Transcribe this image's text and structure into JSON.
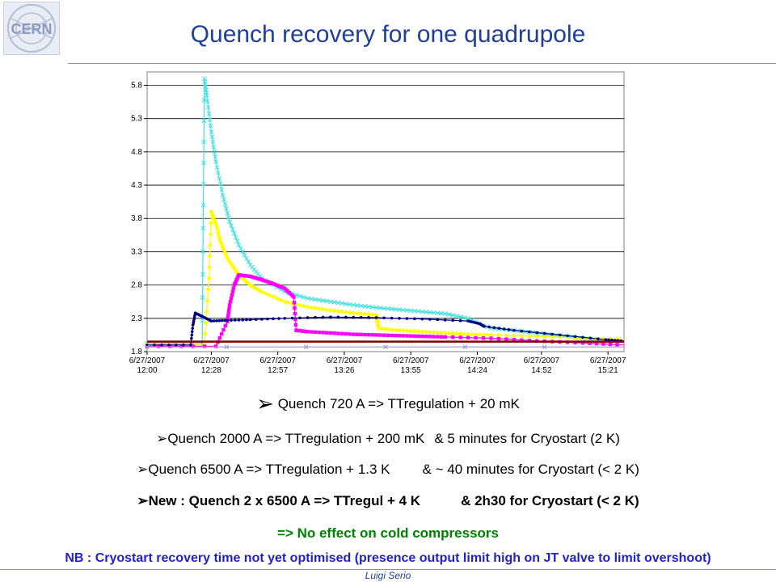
{
  "logo": {
    "text": "CERN"
  },
  "title": "Quench recovery for one quadrupole",
  "bullets": [
    {
      "a": "Quench 720 A => ",
      "b": "TTregulation + 20 mK"
    },
    {
      "a": "Quench 2000 A => TTregulation + 200 mK",
      "b": "& 5 minutes for Cryostart (2 K)"
    },
    {
      "a": "Quench 6500 A => TTregulation + 1.3 K",
      "b": "& ~ 40 minutes for Cryostart (< 2 K)"
    },
    {
      "a": "New : Quench 2 x 6500 A => TTregul + 4 K",
      "b": "& 2h30 for Cryostart (< 2 K)"
    }
  ],
  "conclusion": "=> No effect on cold compressors",
  "note": "NB : Cryostart recovery time not yet optimised (presence output limit high on JT valve to limit overshoot)",
  "footer": "Luigi Serio",
  "colors": {
    "title": "#1f3f9a",
    "conclusion": "#008000",
    "note": "#1f1fd0"
  },
  "chart_data": {
    "type": "line",
    "title": "",
    "xlabel": "",
    "ylabel": "",
    "ylim": [
      1.8,
      6.0
    ],
    "xlim_minutes": [
      0,
      208
    ],
    "yticks": [
      1.8,
      2.3,
      2.8,
      3.3,
      3.8,
      4.3,
      4.8,
      5.3,
      5.8
    ],
    "xticks": [
      {
        "date": "6/27/2007",
        "time": "12:00",
        "minutes": 0
      },
      {
        "date": "6/27/2007",
        "time": "12:28",
        "minutes": 28
      },
      {
        "date": "6/27/2007",
        "time": "12:57",
        "minutes": 57
      },
      {
        "date": "6/27/2007",
        "time": "13:26",
        "minutes": 86
      },
      {
        "date": "6/27/2007",
        "time": "13:55",
        "minutes": 115
      },
      {
        "date": "6/27/2007",
        "time": "14:24",
        "minutes": 144
      },
      {
        "date": "6/27/2007",
        "time": "14:52",
        "minutes": 172
      },
      {
        "date": "6/27/2007",
        "time": "15:21",
        "minutes": 201
      }
    ],
    "grid": "horizontal",
    "legend": "none",
    "series": [
      {
        "color": "#40e0e0",
        "marker": "star",
        "x": [
          0,
          24,
          24.5,
          25,
          26,
          28,
          30,
          33,
          36,
          40,
          45,
          50,
          60,
          70,
          80,
          90,
          100,
          110,
          120,
          130,
          140,
          150,
          160,
          170,
          180,
          190,
          200,
          208
        ],
        "y": [
          1.92,
          1.92,
          4.0,
          5.9,
          5.65,
          5.1,
          4.65,
          4.15,
          3.75,
          3.4,
          3.1,
          2.9,
          2.7,
          2.6,
          2.55,
          2.5,
          2.46,
          2.43,
          2.4,
          2.37,
          2.3,
          2.15,
          2.12,
          2.08,
          2.04,
          2.0,
          1.97,
          1.95
        ]
      },
      {
        "color": "#ffff00",
        "marker": "diamond",
        "x": [
          0,
          25,
          27,
          28,
          30,
          32,
          35,
          40,
          45,
          50,
          60,
          70,
          80,
          90,
          100,
          101,
          110,
          120,
          130,
          140,
          150,
          170,
          190,
          208
        ],
        "y": [
          1.9,
          1.9,
          2.9,
          3.9,
          3.72,
          3.45,
          3.2,
          2.95,
          2.8,
          2.7,
          2.55,
          2.47,
          2.42,
          2.38,
          2.35,
          2.15,
          2.12,
          2.1,
          2.08,
          2.06,
          2.05,
          2.03,
          2.0,
          1.98
        ]
      },
      {
        "color": "#ff00ff",
        "marker": "square",
        "x": [
          0,
          30,
          35,
          36,
          38,
          40,
          45,
          50,
          55,
          60,
          64,
          65,
          70,
          80,
          90,
          100,
          110,
          120,
          130,
          150,
          170,
          190,
          208
        ],
        "y": [
          1.88,
          1.88,
          2.25,
          2.5,
          2.8,
          2.95,
          2.93,
          2.88,
          2.82,
          2.75,
          2.62,
          2.12,
          2.1,
          2.08,
          2.06,
          2.05,
          2.04,
          2.03,
          2.02,
          2.0,
          1.96,
          1.93,
          1.9
        ]
      },
      {
        "color": "#000080",
        "marker": "dot",
        "x": [
          0,
          19,
          20,
          21,
          24,
          28,
          35,
          45,
          60,
          80,
          100,
          120,
          140,
          145,
          147,
          160,
          180,
          200,
          208
        ],
        "y": [
          1.9,
          1.9,
          2.2,
          2.38,
          2.33,
          2.26,
          2.27,
          2.28,
          2.3,
          2.32,
          2.31,
          2.29,
          2.26,
          2.22,
          2.18,
          2.12,
          2.05,
          1.98,
          1.96
        ]
      },
      {
        "color": "#800000",
        "marker": "none",
        "x": [
          0,
          208
        ],
        "y": [
          1.95,
          1.95
        ]
      },
      {
        "color": "#9999cc",
        "marker": "x",
        "x": [
          0,
          208
        ],
        "y": [
          1.87,
          1.87
        ]
      }
    ]
  }
}
